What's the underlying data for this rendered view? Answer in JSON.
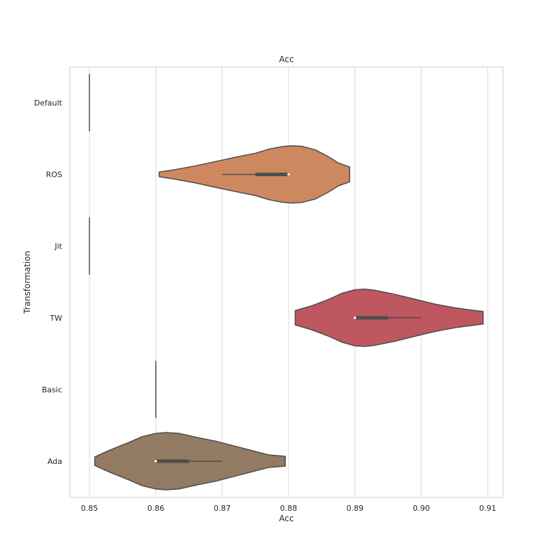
{
  "chart_data": {
    "type": "violin",
    "title": "Acc",
    "xlabel": "Acc",
    "ylabel": "Transformation",
    "xlim": [
      0.847,
      0.9125
    ],
    "xticks": [
      "0.85",
      "0.86",
      "0.87",
      "0.88",
      "0.89",
      "0.90",
      "0.91"
    ],
    "grid": "vertical",
    "categories": [
      "Default",
      "ROS",
      "Jit",
      "TW",
      "Basic",
      "Ada"
    ],
    "series": [
      {
        "category": "Default",
        "color": "#4d4d4d",
        "min": 0.85,
        "max": 0.85,
        "q1": 0.85,
        "median": 0.85,
        "q3": 0.85,
        "profile": []
      },
      {
        "category": "ROS",
        "color": "#cd8860",
        "min": 0.87,
        "max": 0.88,
        "q1": 0.875,
        "median": 0.88,
        "q3": 0.88,
        "profile": [
          [
            0.8605,
            0.08
          ],
          [
            0.863,
            0.17
          ],
          [
            0.866,
            0.3
          ],
          [
            0.869,
            0.45
          ],
          [
            0.872,
            0.6
          ],
          [
            0.875,
            0.74
          ],
          [
            0.877,
            0.88
          ],
          [
            0.879,
            0.97
          ],
          [
            0.8805,
            1.0
          ],
          [
            0.882,
            0.98
          ],
          [
            0.884,
            0.86
          ],
          [
            0.886,
            0.62
          ],
          [
            0.8875,
            0.4
          ],
          [
            0.8892,
            0.26
          ]
        ]
      },
      {
        "category": "Jit",
        "color": "#4d4d4d",
        "min": 0.85,
        "max": 0.85,
        "q1": 0.85,
        "median": 0.85,
        "q3": 0.85,
        "profile": []
      },
      {
        "category": "TW",
        "color": "#bf5760",
        "min": 0.89,
        "max": 0.9,
        "q1": 0.89,
        "median": 0.89,
        "q3": 0.895,
        "profile": [
          [
            0.881,
            0.25
          ],
          [
            0.8835,
            0.42
          ],
          [
            0.886,
            0.64
          ],
          [
            0.888,
            0.85
          ],
          [
            0.89,
            0.98
          ],
          [
            0.8915,
            1.0
          ],
          [
            0.893,
            0.96
          ],
          [
            0.896,
            0.82
          ],
          [
            0.899,
            0.65
          ],
          [
            0.902,
            0.48
          ],
          [
            0.905,
            0.35
          ],
          [
            0.9075,
            0.27
          ],
          [
            0.9093,
            0.22
          ]
        ]
      },
      {
        "category": "Basic",
        "color": "#4d4d4d",
        "min": 0.86,
        "max": 0.86,
        "q1": 0.86,
        "median": 0.86,
        "q3": 0.86,
        "profile": []
      },
      {
        "category": "Ada",
        "color": "#937a62",
        "min": 0.86,
        "max": 0.87,
        "q1": 0.86,
        "median": 0.86,
        "q3": 0.865,
        "profile": [
          [
            0.8508,
            0.15
          ],
          [
            0.853,
            0.38
          ],
          [
            0.856,
            0.66
          ],
          [
            0.858,
            0.86
          ],
          [
            0.86,
            0.97
          ],
          [
            0.8615,
            1.0
          ],
          [
            0.8635,
            0.97
          ],
          [
            0.866,
            0.84
          ],
          [
            0.869,
            0.7
          ],
          [
            0.872,
            0.52
          ],
          [
            0.875,
            0.34
          ],
          [
            0.877,
            0.22
          ],
          [
            0.8795,
            0.17
          ]
        ]
      }
    ]
  }
}
